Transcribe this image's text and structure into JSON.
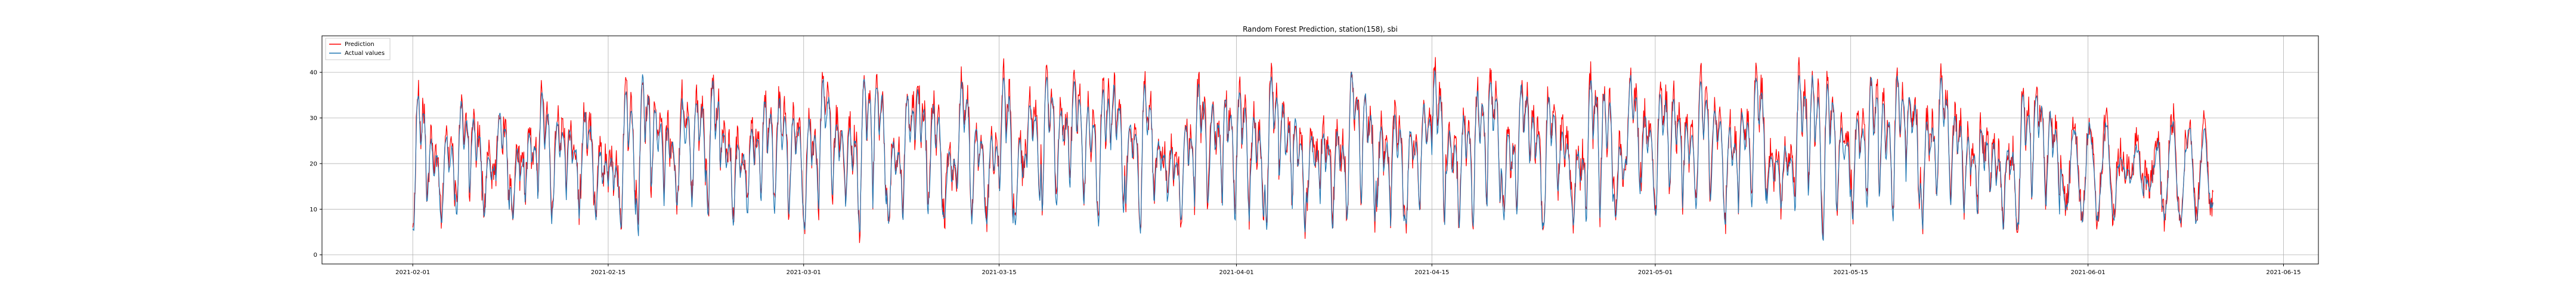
{
  "chart_data": {
    "type": "line",
    "title": "Random Forest Prediction, station(158), sbi",
    "xlabel": "",
    "ylabel": "",
    "x_tick_labels": [
      "2021-02-01",
      "2021-02-15",
      "2021-03-01",
      "2021-03-15",
      "2021-04-01",
      "2021-04-15",
      "2021-05-01",
      "2021-05-15",
      "2021-06-01",
      "2021-06-15"
    ],
    "x_tick_days": [
      0,
      14,
      28,
      42,
      59,
      73,
      89,
      103,
      120,
      134
    ],
    "xlim_days": [
      -6.5,
      136.5
    ],
    "data_range_days": [
      0,
      129
    ],
    "y_ticks": [
      0,
      10,
      20,
      30,
      40
    ],
    "ylim": [
      -2,
      48
    ],
    "grid": true,
    "legend_position": "top-left",
    "series": [
      {
        "name": "Prediction",
        "color": "#ff0000"
      },
      {
        "name": "Actual values",
        "color": "#1f77b4"
      }
    ]
  }
}
